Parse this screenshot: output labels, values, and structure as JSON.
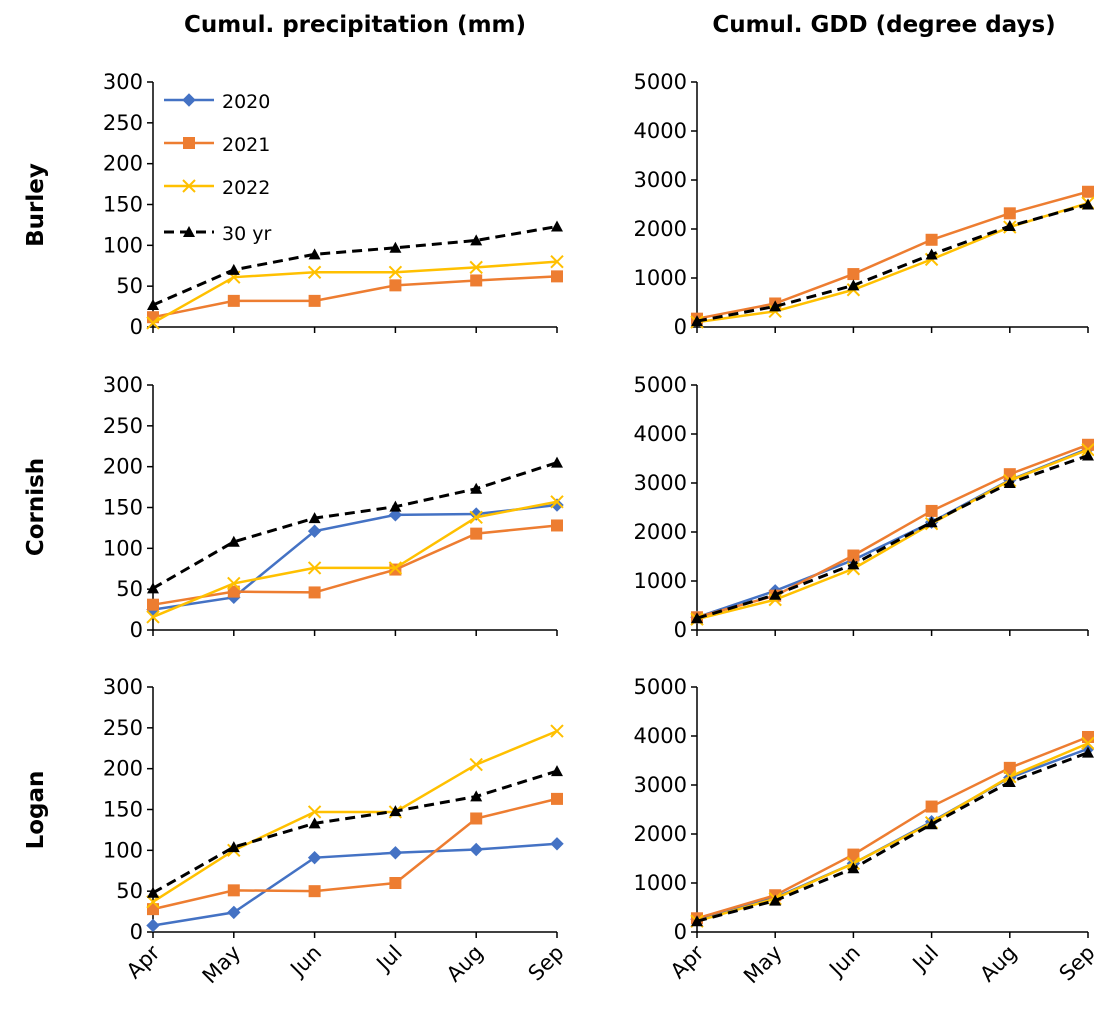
{
  "figure": {
    "col_titles": [
      "Cumul. precipitation (mm)",
      "Cumul. GDD (degree days)"
    ],
    "row_labels": [
      "Burley",
      "Cornish",
      "Logan"
    ]
  },
  "legend": [
    "2020",
    "2021",
    "2022",
    "30 yr"
  ],
  "series_styles": [
    {
      "name": "2020",
      "color": "#4472C4",
      "marker": "diamond",
      "dash": "solid"
    },
    {
      "name": "2021",
      "color": "#ED7D31",
      "marker": "square",
      "dash": "solid"
    },
    {
      "name": "2022",
      "color": "#FFC000",
      "marker": "x",
      "dash": "solid"
    },
    {
      "name": "30 yr",
      "color": "#000000",
      "marker": "triangle",
      "dash": "dashed"
    }
  ],
  "chart_data": [
    {
      "type": "line",
      "row": "Burley",
      "column": "Cumul. precipitation (mm)",
      "categories": [
        "Apr",
        "May",
        "Jun",
        "Jul",
        "Aug",
        "Sep"
      ],
      "ylim": [
        0,
        300
      ],
      "yticks": [
        0,
        50,
        100,
        150,
        200,
        250,
        300
      ],
      "legend": "top-left",
      "series": [
        {
          "name": "2021",
          "values": [
            12,
            32,
            32,
            51,
            57,
            62
          ]
        },
        {
          "name": "2022",
          "values": [
            5,
            61,
            67,
            67,
            73,
            80
          ]
        },
        {
          "name": "30 yr",
          "values": [
            27,
            70,
            89,
            97,
            106,
            123
          ]
        }
      ]
    },
    {
      "type": "line",
      "row": "Burley",
      "column": "Cumul. GDD (degree days)",
      "categories": [
        "Apr",
        "May",
        "Jun",
        "Jul",
        "Aug",
        "Sep"
      ],
      "ylim": [
        0,
        5000
      ],
      "yticks": [
        0,
        1000,
        2000,
        3000,
        4000,
        5000
      ],
      "series": [
        {
          "name": "2021",
          "values": [
            170,
            480,
            1080,
            1780,
            2320,
            2760
          ]
        },
        {
          "name": "2022",
          "values": [
            100,
            320,
            760,
            1380,
            2040,
            2530
          ]
        },
        {
          "name": "30 yr",
          "values": [
            120,
            420,
            850,
            1480,
            2060,
            2500
          ]
        }
      ]
    },
    {
      "type": "line",
      "row": "Cornish",
      "column": "Cumul. precipitation (mm)",
      "categories": [
        "Apr",
        "May",
        "Jun",
        "Jul",
        "Aug",
        "Sep"
      ],
      "ylim": [
        0,
        300
      ],
      "yticks": [
        0,
        50,
        100,
        150,
        200,
        250,
        300
      ],
      "series": [
        {
          "name": "2020",
          "values": [
            25,
            40,
            121,
            141,
            142,
            153
          ]
        },
        {
          "name": "2021",
          "values": [
            31,
            47,
            46,
            74,
            118,
            128
          ]
        },
        {
          "name": "2022",
          "values": [
            16,
            57,
            76,
            76,
            138,
            157
          ]
        },
        {
          "name": "30 yr",
          "values": [
            51,
            108,
            137,
            151,
            173,
            205
          ]
        }
      ]
    },
    {
      "type": "line",
      "row": "Cornish",
      "column": "Cumul. GDD (degree days)",
      "categories": [
        "Apr",
        "May",
        "Jun",
        "Jul",
        "Aug",
        "Sep"
      ],
      "ylim": [
        0,
        5000
      ],
      "yticks": [
        0,
        1000,
        2000,
        3000,
        4000,
        5000
      ],
      "series": [
        {
          "name": "2020",
          "values": [
            260,
            800,
            1430,
            2200,
            3060,
            3700
          ]
        },
        {
          "name": "2021",
          "values": [
            260,
            700,
            1520,
            2430,
            3180,
            3780
          ]
        },
        {
          "name": "2022",
          "values": [
            220,
            620,
            1250,
            2170,
            3050,
            3680
          ]
        },
        {
          "name": "30 yr",
          "values": [
            240,
            720,
            1340,
            2200,
            3000,
            3560
          ]
        }
      ]
    },
    {
      "type": "line",
      "row": "Logan",
      "column": "Cumul. precipitation (mm)",
      "categories": [
        "Apr",
        "May",
        "Jun",
        "Jul",
        "Aug",
        "Sep"
      ],
      "ylim": [
        0,
        300
      ],
      "yticks": [
        0,
        50,
        100,
        150,
        200,
        250,
        300
      ],
      "series": [
        {
          "name": "2020",
          "values": [
            8,
            24,
            91,
            97,
            101,
            108
          ]
        },
        {
          "name": "2021",
          "values": [
            28,
            51,
            50,
            60,
            139,
            163
          ]
        },
        {
          "name": "2022",
          "values": [
            37,
            100,
            147,
            147,
            205,
            246
          ]
        },
        {
          "name": "30 yr",
          "values": [
            48,
            104,
            133,
            148,
            166,
            197
          ]
        }
      ]
    },
    {
      "type": "line",
      "row": "Logan",
      "column": "Cumul. GDD (degree days)",
      "categories": [
        "Apr",
        "May",
        "Jun",
        "Jul",
        "Aug",
        "Sep"
      ],
      "ylim": [
        0,
        5000
      ],
      "yticks": [
        0,
        1000,
        2000,
        3000,
        4000,
        5000
      ],
      "series": [
        {
          "name": "2020",
          "values": [
            260,
            700,
            1400,
            2250,
            3150,
            3740
          ]
        },
        {
          "name": "2021",
          "values": [
            280,
            750,
            1580,
            2560,
            3350,
            3980
          ]
        },
        {
          "name": "2022",
          "values": [
            220,
            680,
            1400,
            2230,
            3170,
            3850
          ]
        },
        {
          "name": "30 yr",
          "values": [
            220,
            640,
            1300,
            2200,
            3060,
            3660
          ]
        }
      ]
    }
  ]
}
